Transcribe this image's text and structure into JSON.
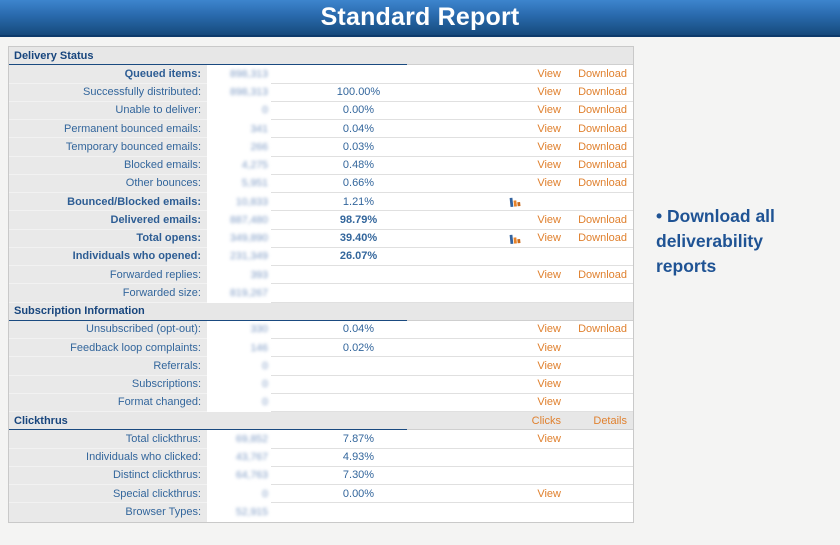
{
  "header": {
    "title": "Standard Report"
  },
  "note": {
    "text": "• Download all deliverability reports"
  },
  "link_labels": {
    "view": "View",
    "download": "Download",
    "clicks": "Clicks",
    "details": "Details"
  },
  "colors": {
    "banner_top": "#3d85cd",
    "banner_bottom": "#16487b",
    "banner_border": "#0d3a6b",
    "link_orange": "#e0812f",
    "label_blue": "#33669c",
    "section_navy": "#17457d",
    "note_blue": "#1f5394",
    "label_bg": "#e9e9e9",
    "section_bg": "#e7e7e7"
  },
  "table": {
    "values_redacted": true,
    "rows": [
      {
        "type": "section",
        "label": "Delivery Status",
        "links": []
      },
      {
        "type": "data",
        "label": "Queued items:",
        "label_bold": true,
        "value": "898,313",
        "percent": "",
        "links": [
          "view",
          "download"
        ]
      },
      {
        "type": "data",
        "label": "Successfully distributed:",
        "value": "898,313",
        "percent": "100.00%",
        "links": [
          "view",
          "download"
        ]
      },
      {
        "type": "data",
        "label": "Unable to deliver:",
        "value": "0",
        "percent": "0.00%",
        "links": [
          "view",
          "download"
        ]
      },
      {
        "type": "data",
        "label": "Permanent bounced emails:",
        "value": "341",
        "percent": "0.04%",
        "links": [
          "view",
          "download"
        ]
      },
      {
        "type": "data",
        "label": "Temporary bounced emails:",
        "value": "266",
        "percent": "0.03%",
        "links": [
          "view",
          "download"
        ]
      },
      {
        "type": "data",
        "label": "Blocked emails:",
        "value": "4,275",
        "percent": "0.48%",
        "links": [
          "view",
          "download"
        ]
      },
      {
        "type": "data",
        "label": "Other bounces:",
        "value": "5,951",
        "percent": "0.66%",
        "links": [
          "view",
          "download"
        ]
      },
      {
        "type": "data",
        "label": "Bounced/Blocked emails:",
        "label_bold": true,
        "value": "10,833",
        "percent": "1.21%",
        "icon": "bar-chart",
        "links": []
      },
      {
        "type": "data",
        "label": "Delivered emails:",
        "label_bold": true,
        "value": "887,480",
        "percent": "98.79%",
        "percent_bold": true,
        "links": [
          "view",
          "download"
        ]
      },
      {
        "type": "data",
        "label": "Total opens:",
        "label_bold": true,
        "value": "349,890",
        "percent": "39.40%",
        "percent_bold": true,
        "icon": "bar-chart",
        "links": [
          "view",
          "download"
        ]
      },
      {
        "type": "data",
        "label": "Individuals who opened:",
        "label_bold": true,
        "value": "231,349",
        "percent": "26.07%",
        "percent_bold": true,
        "links": []
      },
      {
        "type": "data",
        "label": "Forwarded replies:",
        "value": "393",
        "percent": "",
        "links": [
          "view",
          "download"
        ]
      },
      {
        "type": "data",
        "label": "Forwarded size:",
        "value": "819,267",
        "percent": "",
        "links": []
      },
      {
        "type": "section",
        "label": "Subscription Information",
        "links": []
      },
      {
        "type": "data",
        "label": "Unsubscribed (opt-out):",
        "value": "330",
        "percent": "0.04%",
        "links": [
          "view",
          "download"
        ]
      },
      {
        "type": "data",
        "label": "Feedback loop complaints:",
        "value": "146",
        "percent": "0.02%",
        "links": [
          "view"
        ]
      },
      {
        "type": "data",
        "label": "Referrals:",
        "value": "0",
        "percent": "",
        "links": [
          "view"
        ]
      },
      {
        "type": "data",
        "label": "Subscriptions:",
        "value": "0",
        "percent": "",
        "links": [
          "view"
        ]
      },
      {
        "type": "data",
        "label": "Format changed:",
        "value": "0",
        "percent": "",
        "links": [
          "view"
        ]
      },
      {
        "type": "section",
        "label": "Clickthrus",
        "links": [
          "clicks",
          "details"
        ]
      },
      {
        "type": "data",
        "label": "Total clickthrus:",
        "value": "69,852",
        "percent": "7.87%",
        "links": [
          "view"
        ]
      },
      {
        "type": "data",
        "label": "Individuals who clicked:",
        "value": "43,767",
        "percent": "4.93%",
        "links": []
      },
      {
        "type": "data",
        "label": "Distinct clickthrus:",
        "value": "64,763",
        "percent": "7.30%",
        "links": []
      },
      {
        "type": "data",
        "label": "Special clickthrus:",
        "value": "0",
        "percent": "0.00%",
        "links": [
          "view"
        ]
      },
      {
        "type": "data",
        "label": "Browser Types:",
        "value": "52,915",
        "percent": "",
        "links": []
      }
    ]
  }
}
